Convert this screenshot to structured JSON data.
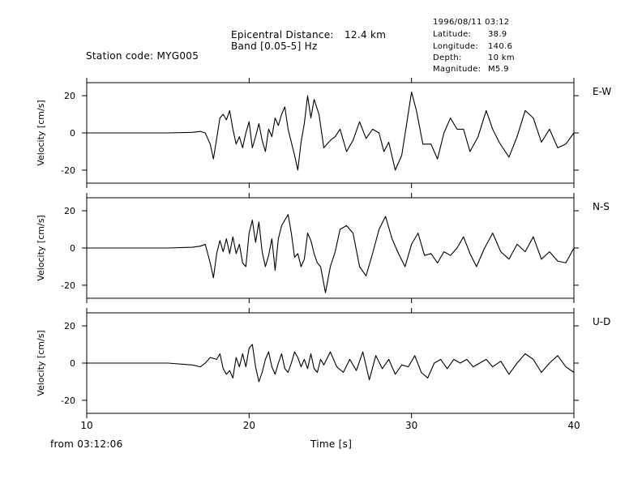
{
  "header": {
    "station": "Station code: MYG005",
    "epicentral_label": "Epicentral Distance:",
    "epicentral_value": "12.4 km",
    "band": "Band [0.05-5] Hz",
    "datetime": "1996/08/11 03:12",
    "info": [
      {
        "label": "Latitude:",
        "value": "38.9"
      },
      {
        "label": "Longitude:",
        "value": "140.6"
      },
      {
        "label": "Depth:",
        "value": "10 km"
      },
      {
        "label": "Magnitude:",
        "value": "M5.9"
      }
    ]
  },
  "footer": {
    "from_label": "from 03:12:06"
  },
  "chart_data": {
    "type": "line",
    "xlabel": "Time [s]",
    "xlim": [
      10,
      40
    ],
    "x_ticks": [
      10,
      20,
      30,
      40
    ],
    "ylim": [
      -27,
      27
    ],
    "y_ticks": [
      -20,
      0,
      20
    ],
    "ylabel": "Velocity [cm/s]",
    "panels": [
      {
        "name": "E-W",
        "points": [
          [
            10,
            0
          ],
          [
            15,
            0
          ],
          [
            16.5,
            0.3
          ],
          [
            17,
            0.8
          ],
          [
            17.3,
            0
          ],
          [
            17.6,
            -6
          ],
          [
            17.8,
            -14
          ],
          [
            18,
            -3
          ],
          [
            18.2,
            8
          ],
          [
            18.4,
            10
          ],
          [
            18.6,
            7
          ],
          [
            18.8,
            12
          ],
          [
            19,
            2
          ],
          [
            19.2,
            -6
          ],
          [
            19.4,
            -2
          ],
          [
            19.6,
            -8
          ],
          [
            19.8,
            0
          ],
          [
            20,
            6
          ],
          [
            20.2,
            -8
          ],
          [
            20.4,
            -2
          ],
          [
            20.6,
            5
          ],
          [
            20.8,
            -4
          ],
          [
            21,
            -10
          ],
          [
            21.2,
            2
          ],
          [
            21.4,
            -2
          ],
          [
            21.6,
            8
          ],
          [
            21.8,
            4
          ],
          [
            22,
            10
          ],
          [
            22.2,
            14
          ],
          [
            22.4,
            2
          ],
          [
            22.6,
            -5
          ],
          [
            22.8,
            -12
          ],
          [
            23,
            -20
          ],
          [
            23.2,
            -5
          ],
          [
            23.4,
            5
          ],
          [
            23.6,
            20
          ],
          [
            23.8,
            8
          ],
          [
            24,
            18
          ],
          [
            24.3,
            10
          ],
          [
            24.6,
            -8
          ],
          [
            25,
            -4
          ],
          [
            25.3,
            -2
          ],
          [
            25.6,
            2
          ],
          [
            26,
            -10
          ],
          [
            26.4,
            -4
          ],
          [
            26.8,
            6
          ],
          [
            27.2,
            -3
          ],
          [
            27.6,
            2
          ],
          [
            28,
            0
          ],
          [
            28.3,
            -10
          ],
          [
            28.6,
            -5
          ],
          [
            29,
            -20
          ],
          [
            29.4,
            -12
          ],
          [
            29.7,
            5
          ],
          [
            30,
            22
          ],
          [
            30.3,
            12
          ],
          [
            30.7,
            -6
          ],
          [
            31.2,
            -6
          ],
          [
            31.6,
            -14
          ],
          [
            32,
            0
          ],
          [
            32.4,
            8
          ],
          [
            32.8,
            2
          ],
          [
            33.2,
            2
          ],
          [
            33.6,
            -10
          ],
          [
            34.1,
            -2
          ],
          [
            34.6,
            12
          ],
          [
            35,
            2
          ],
          [
            35.4,
            -5
          ],
          [
            36,
            -13
          ],
          [
            36.5,
            -2
          ],
          [
            37,
            12
          ],
          [
            37.5,
            8
          ],
          [
            38,
            -5
          ],
          [
            38.5,
            2
          ],
          [
            39,
            -8
          ],
          [
            39.5,
            -6
          ],
          [
            40,
            0
          ]
        ]
      },
      {
        "name": "N-S",
        "points": [
          [
            10,
            0
          ],
          [
            15,
            0
          ],
          [
            16.5,
            0.4
          ],
          [
            17,
            1
          ],
          [
            17.3,
            2
          ],
          [
            17.6,
            -8
          ],
          [
            17.8,
            -16
          ],
          [
            18,
            -3
          ],
          [
            18.2,
            4
          ],
          [
            18.4,
            -2
          ],
          [
            18.6,
            5
          ],
          [
            18.8,
            -3
          ],
          [
            19,
            6
          ],
          [
            19.2,
            -3
          ],
          [
            19.4,
            2
          ],
          [
            19.6,
            -8
          ],
          [
            19.8,
            -10
          ],
          [
            20,
            8
          ],
          [
            20.2,
            15
          ],
          [
            20.4,
            3
          ],
          [
            20.6,
            14
          ],
          [
            20.8,
            -2
          ],
          [
            21,
            -10
          ],
          [
            21.2,
            -4
          ],
          [
            21.4,
            5
          ],
          [
            21.6,
            -12
          ],
          [
            21.8,
            5
          ],
          [
            22,
            12
          ],
          [
            22.2,
            15
          ],
          [
            22.4,
            18
          ],
          [
            22.6,
            8
          ],
          [
            22.8,
            -5
          ],
          [
            23,
            -3
          ],
          [
            23.2,
            -10
          ],
          [
            23.4,
            -6
          ],
          [
            23.6,
            8
          ],
          [
            23.8,
            4
          ],
          [
            24,
            -3
          ],
          [
            24.2,
            -8
          ],
          [
            24.4,
            -10
          ],
          [
            24.7,
            -24
          ],
          [
            25,
            -10
          ],
          [
            25.3,
            -2
          ],
          [
            25.6,
            10
          ],
          [
            26,
            12
          ],
          [
            26.4,
            8
          ],
          [
            26.8,
            -10
          ],
          [
            27.2,
            -15
          ],
          [
            27.6,
            -3
          ],
          [
            28,
            10
          ],
          [
            28.4,
            17
          ],
          [
            28.8,
            5
          ],
          [
            29.2,
            -3
          ],
          [
            29.6,
            -10
          ],
          [
            30,
            2
          ],
          [
            30.4,
            8
          ],
          [
            30.8,
            -4
          ],
          [
            31.2,
            -3
          ],
          [
            31.6,
            -8
          ],
          [
            32,
            -2
          ],
          [
            32.4,
            -4
          ],
          [
            32.8,
            0
          ],
          [
            33.2,
            6
          ],
          [
            33.6,
            -3
          ],
          [
            34,
            -10
          ],
          [
            34.5,
            0
          ],
          [
            35,
            8
          ],
          [
            35.5,
            -2
          ],
          [
            36,
            -6
          ],
          [
            36.5,
            2
          ],
          [
            37,
            -2
          ],
          [
            37.5,
            6
          ],
          [
            38,
            -6
          ],
          [
            38.5,
            -2
          ],
          [
            39,
            -7
          ],
          [
            39.5,
            -8
          ],
          [
            40,
            0
          ]
        ]
      },
      {
        "name": "U-D",
        "points": [
          [
            10,
            0
          ],
          [
            15,
            0
          ],
          [
            16.5,
            -1
          ],
          [
            17,
            -2
          ],
          [
            17.3,
            0
          ],
          [
            17.6,
            3
          ],
          [
            18,
            2
          ],
          [
            18.2,
            5
          ],
          [
            18.4,
            -3
          ],
          [
            18.6,
            -6
          ],
          [
            18.8,
            -4
          ],
          [
            19,
            -8
          ],
          [
            19.2,
            3
          ],
          [
            19.4,
            -2
          ],
          [
            19.6,
            5
          ],
          [
            19.8,
            -2
          ],
          [
            20,
            8
          ],
          [
            20.2,
            10
          ],
          [
            20.4,
            -2
          ],
          [
            20.6,
            -10
          ],
          [
            20.8,
            -5
          ],
          [
            21,
            2
          ],
          [
            21.2,
            6
          ],
          [
            21.4,
            -2
          ],
          [
            21.6,
            -6
          ],
          [
            21.8,
            0
          ],
          [
            22,
            5
          ],
          [
            22.2,
            -3
          ],
          [
            22.4,
            -5
          ],
          [
            22.6,
            0
          ],
          [
            22.8,
            6
          ],
          [
            23,
            3
          ],
          [
            23.2,
            -2
          ],
          [
            23.4,
            2
          ],
          [
            23.6,
            -3
          ],
          [
            23.8,
            5
          ],
          [
            24,
            -3
          ],
          [
            24.2,
            -5
          ],
          [
            24.4,
            2
          ],
          [
            24.6,
            -1
          ],
          [
            25,
            6
          ],
          [
            25.4,
            -2
          ],
          [
            25.8,
            -5
          ],
          [
            26.2,
            2
          ],
          [
            26.6,
            -4
          ],
          [
            27,
            6
          ],
          [
            27.4,
            -9
          ],
          [
            27.8,
            4
          ],
          [
            28.2,
            -3
          ],
          [
            28.6,
            2
          ],
          [
            29,
            -6
          ],
          [
            29.4,
            -1
          ],
          [
            29.8,
            -2
          ],
          [
            30.2,
            4
          ],
          [
            30.6,
            -5
          ],
          [
            31,
            -8
          ],
          [
            31.4,
            0
          ],
          [
            31.8,
            2
          ],
          [
            32.2,
            -3
          ],
          [
            32.6,
            2
          ],
          [
            33,
            0
          ],
          [
            33.4,
            2
          ],
          [
            33.8,
            -2
          ],
          [
            34.2,
            0
          ],
          [
            34.6,
            2
          ],
          [
            35,
            -2
          ],
          [
            35.5,
            1
          ],
          [
            36,
            -6
          ],
          [
            36.5,
            0
          ],
          [
            37,
            5
          ],
          [
            37.5,
            2
          ],
          [
            38,
            -5
          ],
          [
            38.5,
            0
          ],
          [
            39,
            4
          ],
          [
            39.5,
            -2
          ],
          [
            40,
            -5
          ]
        ]
      }
    ]
  }
}
